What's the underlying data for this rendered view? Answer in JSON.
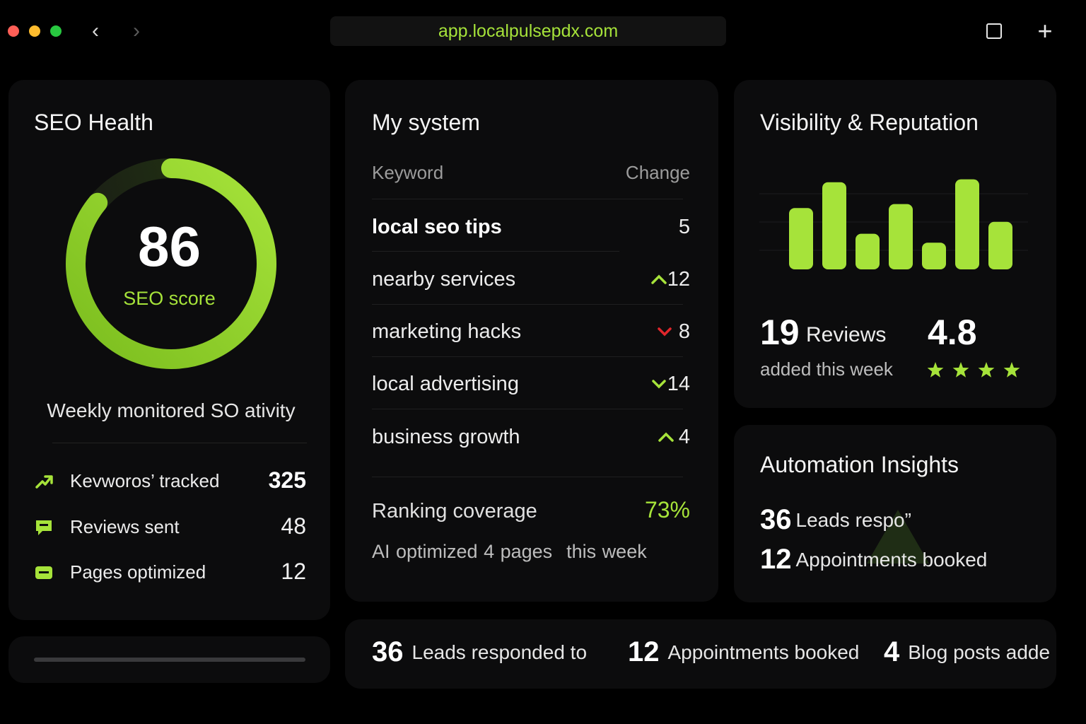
{
  "browser": {
    "url": "app.localpulsepdx.com",
    "back_icon": "chevron-left-icon",
    "forward_icon": "chevron-right-icon",
    "tabs_icon": "tabs-overview-icon",
    "new_tab_icon": "plus-icon"
  },
  "seo_health": {
    "title": "SEO Health",
    "score": "86",
    "score_value": 86,
    "score_max": 100,
    "score_label": "SEO score",
    "weekly_text": "Weekly monitored SO ativity",
    "stats": [
      {
        "label": "Kevworos’ tracked",
        "value": "325",
        "icon": "trend-up-arrow-icon"
      },
      {
        "label": "Reviews sent",
        "value": "48",
        "icon": "chat-bubble-icon"
      },
      {
        "label": "Pages optimized",
        "value": "12",
        "icon": "page-icon"
      }
    ]
  },
  "my_system": {
    "title": "My system",
    "col_keyword": "Keyword",
    "col_change": "Change",
    "keywords": [
      {
        "name": "local seo tips",
        "change": "5",
        "direction": "none"
      },
      {
        "name": "nearby services",
        "change": "12",
        "direction": "up"
      },
      {
        "name": "marketing hacks",
        "change": "8",
        "direction": "down-red"
      },
      {
        "name": "local advertising",
        "change": "14",
        "direction": "down-green"
      },
      {
        "name": "business growth",
        "change": "4",
        "direction": "up"
      }
    ],
    "coverage_label": "Ranking coverage",
    "coverage_value": "73%",
    "ai_text_a": "AI optimized 4 pages",
    "ai_text_b": "this week"
  },
  "visibility": {
    "title": "Visibility & Reputation",
    "bars": [
      0.62,
      0.88,
      0.36,
      0.66,
      0.27,
      0.91,
      0.48
    ],
    "reviews_count": "19",
    "reviews_label": "Reviews",
    "reviews_sub": "added this week",
    "rating": "4.8",
    "stars": 4
  },
  "automation": {
    "title": "Automation Insights",
    "rows": [
      {
        "num": "36",
        "label": "Leads respo”"
      },
      {
        "num": "12",
        "label": "Appointments booked"
      }
    ]
  },
  "summary": [
    {
      "num": "36",
      "label": "Leads responded to"
    },
    {
      "num": "12",
      "label": "Appointments booked"
    },
    {
      "num": "4",
      "label": "Blog posts adde"
    }
  ],
  "colors": {
    "accent": "#a6e33a",
    "down": "#e0262b",
    "card": "#0c0c0d"
  }
}
